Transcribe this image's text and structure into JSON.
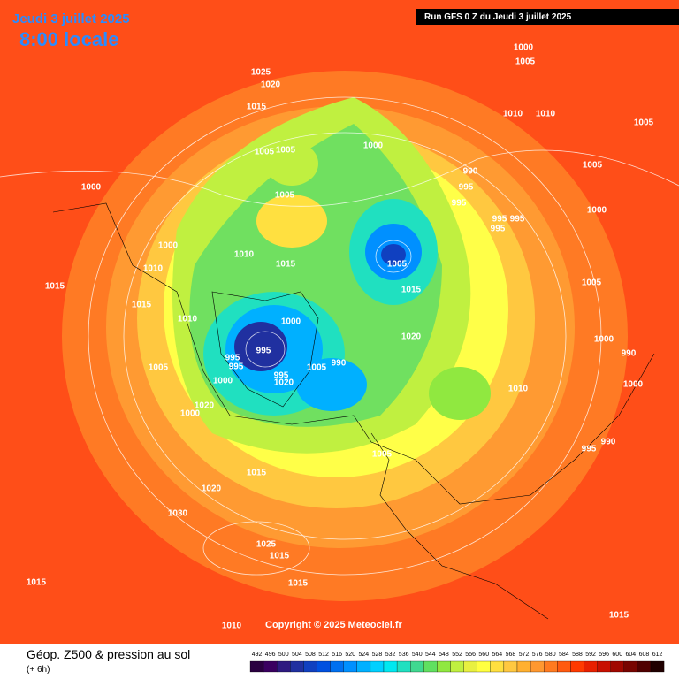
{
  "header": {
    "title": "Jeudi 3 juillet 2025",
    "time": "8:00 locale",
    "run": "Run GFS 0 Z du Jeudi 3 juillet 2025"
  },
  "copyright": "Copyright © 2025 Meteociel.fr",
  "legend": {
    "title": "Géop. Z500 & pression au sol",
    "step": "(+ 6h)",
    "scale": {
      "values": [
        492,
        496,
        500,
        504,
        508,
        512,
        516,
        520,
        524,
        528,
        532,
        536,
        540,
        544,
        548,
        552,
        556,
        560,
        564,
        568,
        572,
        576,
        580,
        584,
        588,
        592,
        596,
        600,
        604,
        608,
        612
      ],
      "colors": [
        "#2a0040",
        "#3a0060",
        "#2e1a80",
        "#2030a0",
        "#1040c0",
        "#0050e0",
        "#0070f0",
        "#0090ff",
        "#00b0ff",
        "#00d0ff",
        "#00e8f0",
        "#20e0c0",
        "#40d890",
        "#60e060",
        "#90e840",
        "#c0f040",
        "#e8f040",
        "#ffff40",
        "#ffe040",
        "#ffc840",
        "#ffb030",
        "#ff9830",
        "#ff7a20",
        "#ff5a10",
        "#ff3a00",
        "#e82000",
        "#c81000",
        "#a00800",
        "#780400",
        "#500000",
        "#200000"
      ]
    }
  },
  "isobar_labels": [
    1000,
    1005,
    1025,
    1020,
    1015,
    1010,
    1000,
    1005,
    1005,
    1000,
    990,
    995,
    995,
    995,
    995,
    995,
    1005,
    1000,
    1005,
    1010,
    1015,
    1010,
    1015,
    1010,
    1000,
    995,
    995,
    1005,
    1020,
    1000,
    995,
    1000,
    990,
    995,
    1005,
    1020,
    1015,
    1020,
    1030,
    1025,
    1015,
    1015,
    1015,
    1010,
    1010,
    1015,
    1020,
    1005,
    1000,
    1010,
    1005,
    1005,
    1000,
    990,
    1000,
    995,
    990,
    1015,
    1015,
    1005
  ]
}
